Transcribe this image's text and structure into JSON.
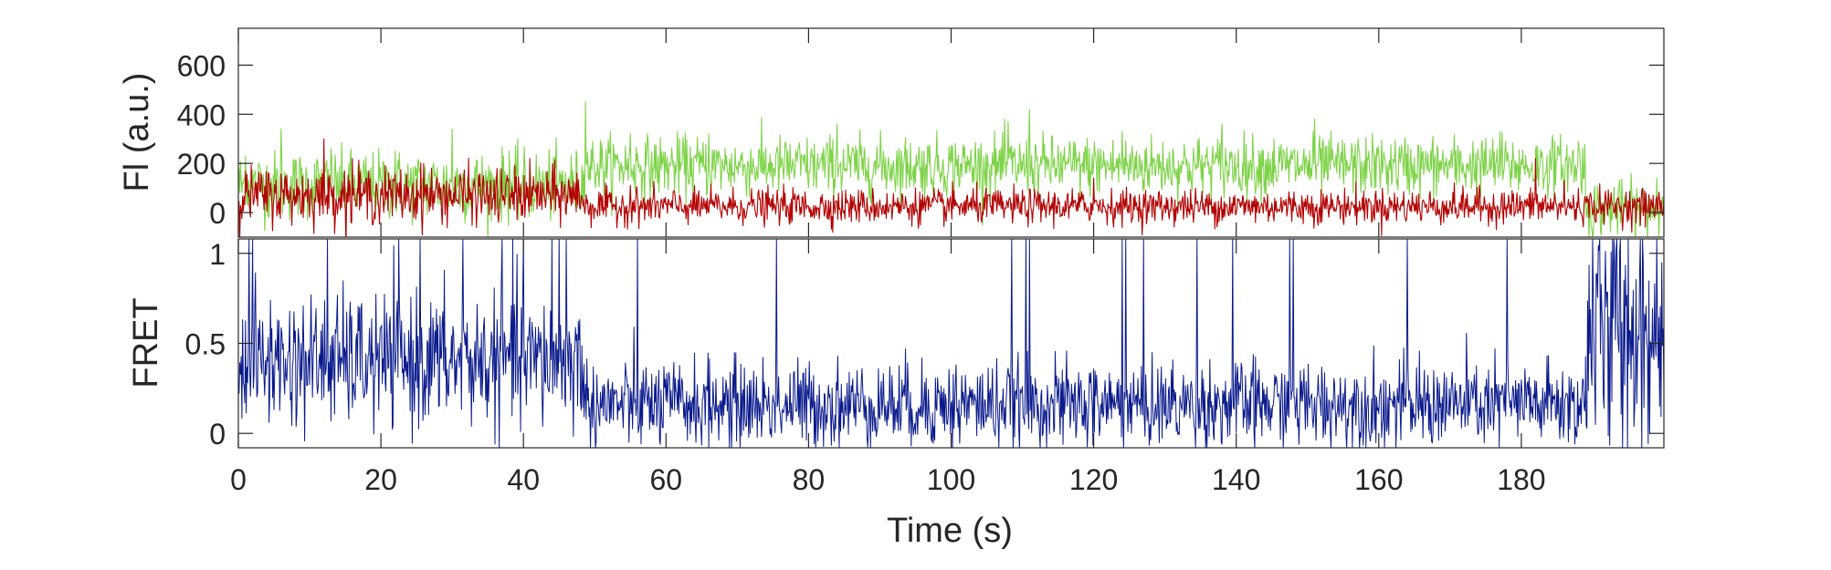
{
  "chart_data": [
    {
      "type": "line",
      "panel": "top",
      "title": "",
      "xlabel": "",
      "ylabel": "Fl (a.u.)",
      "xlim": [
        0,
        200
      ],
      "ylim": [
        -100,
        750
      ],
      "yticks": [
        0,
        200,
        400,
        600
      ],
      "grid": false,
      "legend": "none",
      "series": [
        {
          "color": "#7ed348",
          "segments": [
            {
              "x": [
                0,
                48.5
              ],
              "mean": 110,
              "noise": 70,
              "spikes": [
                [
                  1,
                  230
                ],
                [
                  6,
                  340
                ],
                [
                  13,
                  260
                ],
                [
                  22,
                  250
                ],
                [
                  30,
                  340
                ],
                [
                  38,
                  250
                ]
              ]
            },
            {
              "x": [
                48.5,
                189
              ],
              "mean": 190,
              "noise": 60,
              "spikes": [
                [
                  48.7,
                  450
                ],
                [
                  55,
                  320
                ],
                [
                  66,
                  320
                ],
                [
                  84,
                  360
                ],
                [
                  108,
                  370
                ],
                [
                  111,
                  420
                ],
                [
                  124,
                  330
                ],
                [
                  138,
                  360
                ],
                [
                  151,
                  380
                ],
                [
                  177,
                  330
                ],
                [
                  188,
                  290
                ]
              ]
            },
            {
              "x": [
                189,
                200
              ],
              "mean": 15,
              "noise": 55,
              "spikes": [
                [
                  190,
                  -100
                ],
                [
                  199,
                  140
                ]
              ]
            }
          ]
        },
        {
          "color": "#b30000",
          "segments": [
            {
              "x": [
                0,
                48.5
              ],
              "mean": 70,
              "noise": 55,
              "spikes": [
                [
                  12,
                  300
                ],
                [
                  16,
                  220
                ],
                [
                  26,
                  200
                ],
                [
                  36,
                  -10
                ]
              ]
            },
            {
              "x": [
                48.5,
                200
              ],
              "mean": 25,
              "noise": 35,
              "spikes": [
                [
                  55,
                  110
                ],
                [
                  64,
                  110
                ],
                [
                  120,
                  140
                ],
                [
                  182,
                  220
                ],
                [
                  186,
                  130
                ]
              ]
            }
          ]
        }
      ]
    },
    {
      "type": "line",
      "panel": "bottom",
      "title": "",
      "xlabel": "Time (s)",
      "ylabel": "FRET",
      "xlim": [
        0,
        200
      ],
      "ylim": [
        -0.08,
        1.08
      ],
      "xticks": [
        0,
        20,
        40,
        60,
        80,
        100,
        120,
        140,
        160,
        180
      ],
      "yticks": [
        0,
        0.5,
        1
      ],
      "ytick_labels": [
        "0",
        "0.5",
        "1"
      ],
      "grid": false,
      "legend": "none",
      "series": [
        {
          "color": "#0a1a8c",
          "segments": [
            {
              "x": [
                0,
                48.5
              ],
              "mean": 0.4,
              "noise": 0.18,
              "spikes": [
                [
                  1.5,
                  1.08
                ],
                [
                  2,
                  1.08
                ],
                [
                  12.5,
                  1.08
                ],
                [
                  22.5,
                  1.08
                ],
                [
                  25.5,
                  1.08
                ],
                [
                  31.5,
                  1.08
                ],
                [
                  37,
                  1.08
                ],
                [
                  38.5,
                  1.08
                ],
                [
                  40,
                  1.08
                ],
                [
                  44,
                  1.08
                ],
                [
                  45,
                  1.08
                ],
                [
                  46,
                  1.08
                ]
              ]
            },
            {
              "x": [
                48.5,
                189
              ],
              "mean": 0.16,
              "noise": 0.12,
              "spikes": [
                [
                  56,
                  1.08
                ],
                [
                  75.5,
                  1.08
                ],
                [
                  108.5,
                  1.08
                ],
                [
                  110.5,
                  1.08
                ],
                [
                  111,
                  1.08
                ],
                [
                  124,
                  1.08
                ],
                [
                  124.5,
                  1.08
                ],
                [
                  127,
                  1.08
                ],
                [
                  134.5,
                  1.08
                ],
                [
                  139.5,
                  1.08
                ],
                [
                  147.5,
                  1.08
                ],
                [
                  148,
                  1.08
                ],
                [
                  164,
                  1.08
                ],
                [
                  178,
                  1.08
                ]
              ]
            },
            {
              "x": [
                189,
                200
              ],
              "mean": 0.55,
              "noise": 0.35,
              "spikes": [
                [
                  190,
                  1.08
                ],
                [
                  191,
                  1.08
                ],
                [
                  193,
                  1.08
                ],
                [
                  195,
                  1.08
                ],
                [
                  197,
                  1.08
                ],
                [
                  199,
                  1.08
                ]
              ]
            }
          ]
        }
      ]
    }
  ]
}
